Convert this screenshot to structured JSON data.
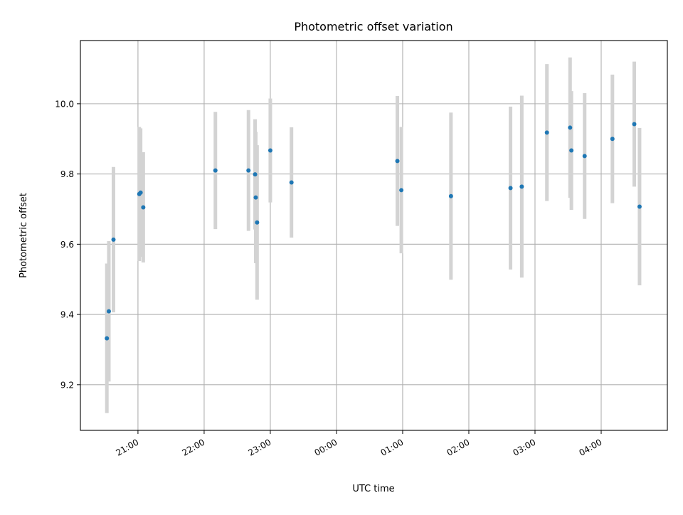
{
  "chart_data": {
    "type": "scatter",
    "title": "Photometric offset variation",
    "xlabel": "UTC time",
    "ylabel": "Photometric offset",
    "x_unit": "hours UTC (values beyond 24 are times after midnight)",
    "xlim": [
      20.13,
      29.0
    ],
    "ylim": [
      9.07,
      10.18
    ],
    "x_ticks": [
      {
        "value": 21,
        "label": "21:00"
      },
      {
        "value": 22,
        "label": "22:00"
      },
      {
        "value": 23,
        "label": "23:00"
      },
      {
        "value": 24,
        "label": "00:00"
      },
      {
        "value": 25,
        "label": "01:00"
      },
      {
        "value": 26,
        "label": "02:00"
      },
      {
        "value": 27,
        "label": "03:00"
      },
      {
        "value": 28,
        "label": "04:00"
      }
    ],
    "y_ticks": [
      {
        "value": 9.2,
        "label": "9.2"
      },
      {
        "value": 9.4,
        "label": "9.4"
      },
      {
        "value": 9.6,
        "label": "9.6"
      },
      {
        "value": 9.8,
        "label": "9.8"
      },
      {
        "value": 10.0,
        "label": "10.0"
      }
    ],
    "grid": true,
    "marker_color": "#1f77b4",
    "errorbar_color": "#d3d3d3",
    "points": [
      {
        "x": 20.53,
        "y": 9.332,
        "yerr": 0.213
      },
      {
        "x": 20.56,
        "y": 9.409,
        "yerr": 0.2
      },
      {
        "x": 20.63,
        "y": 9.613,
        "yerr": 0.207
      },
      {
        "x": 21.02,
        "y": 9.743,
        "yerr": 0.191
      },
      {
        "x": 21.04,
        "y": 9.747,
        "yerr": 0.183
      },
      {
        "x": 21.08,
        "y": 9.705,
        "yerr": 0.157
      },
      {
        "x": 22.17,
        "y": 9.81,
        "yerr": 0.167
      },
      {
        "x": 22.67,
        "y": 9.81,
        "yerr": 0.172
      },
      {
        "x": 22.77,
        "y": 9.799,
        "yerr": 0.157
      },
      {
        "x": 22.78,
        "y": 9.733,
        "yerr": 0.187
      },
      {
        "x": 22.8,
        "y": 9.662,
        "yerr": 0.22
      },
      {
        "x": 23.0,
        "y": 9.867,
        "yerr": 0.148
      },
      {
        "x": 23.32,
        "y": 9.776,
        "yerr": 0.157
      },
      {
        "x": 24.92,
        "y": 9.837,
        "yerr": 0.185
      },
      {
        "x": 24.98,
        "y": 9.754,
        "yerr": 0.18
      },
      {
        "x": 25.73,
        "y": 9.737,
        "yerr": 0.238
      },
      {
        "x": 26.63,
        "y": 9.76,
        "yerr": 0.232
      },
      {
        "x": 26.8,
        "y": 9.764,
        "yerr": 0.259
      },
      {
        "x": 27.18,
        "y": 9.918,
        "yerr": 0.195
      },
      {
        "x": 27.53,
        "y": 9.932,
        "yerr": 0.2
      },
      {
        "x": 27.55,
        "y": 9.867,
        "yerr": 0.169
      },
      {
        "x": 27.75,
        "y": 9.851,
        "yerr": 0.179
      },
      {
        "x": 28.17,
        "y": 9.9,
        "yerr": 0.183
      },
      {
        "x": 28.5,
        "y": 9.942,
        "yerr": 0.178
      },
      {
        "x": 28.58,
        "y": 9.707,
        "yerr": 0.224
      }
    ]
  }
}
